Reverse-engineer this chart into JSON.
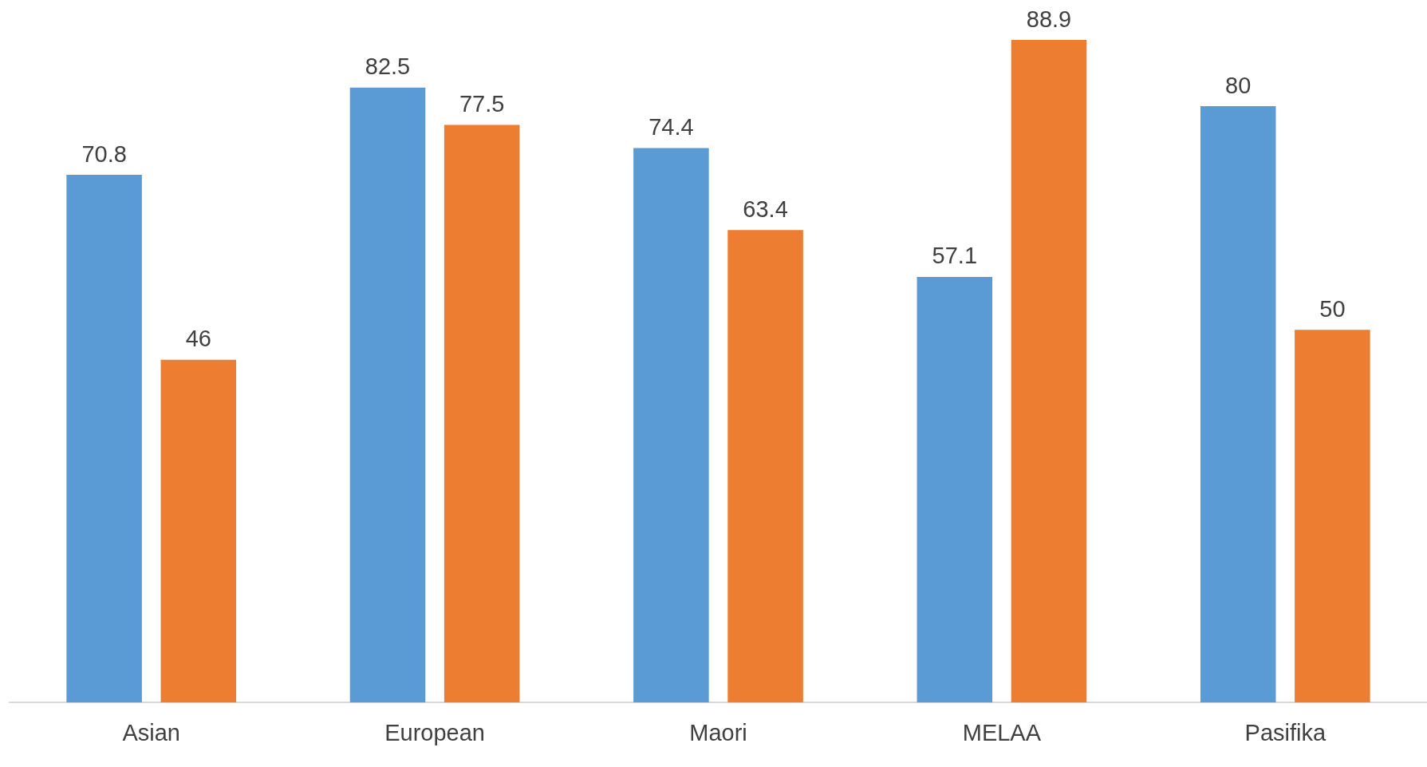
{
  "chart_data": {
    "type": "bar",
    "categories": [
      "Asian",
      "European",
      "Maori",
      "MELAA",
      "Pasifika"
    ],
    "series": [
      {
        "color": "#5b9bd5",
        "values": [
          70.8,
          82.5,
          74.4,
          57.1,
          80
        ]
      },
      {
        "color": "#ed7d31",
        "values": [
          46,
          77.5,
          63.4,
          88.9,
          50
        ]
      }
    ],
    "data_labels": true
  }
}
